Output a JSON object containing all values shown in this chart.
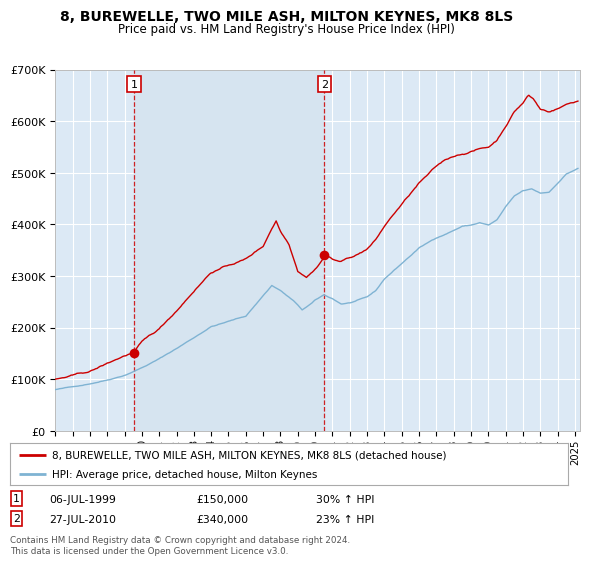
{
  "title": "8, BUREWELLE, TWO MILE ASH, MILTON KEYNES, MK8 8LS",
  "subtitle": "Price paid vs. HM Land Registry's House Price Index (HPI)",
  "legend_line1": "8, BUREWELLE, TWO MILE ASH, MILTON KEYNES, MK8 8LS (detached house)",
  "legend_line2": "HPI: Average price, detached house, Milton Keynes",
  "annotation1_date": "06-JUL-1999",
  "annotation1_price": "£150,000",
  "annotation1_hpi": "30% ↑ HPI",
  "annotation2_date": "27-JUL-2010",
  "annotation2_price": "£340,000",
  "annotation2_hpi": "23% ↑ HPI",
  "footer": "Contains HM Land Registry data © Crown copyright and database right 2024.\nThis data is licensed under the Open Government Licence v3.0.",
  "sale1_year": 1999.54,
  "sale1_value": 150000,
  "sale2_year": 2010.54,
  "sale2_value": 340000,
  "red_color": "#cc0000",
  "blue_color": "#7fb3d3",
  "shade_color": "#d6e4f0",
  "bg_color": "#dce9f5",
  "grid_color": "#ffffff",
  "ann_box_color": "#cc0000",
  "ylim": [
    0,
    700000
  ],
  "xlim_start": 1995.0,
  "xlim_end": 2025.3
}
